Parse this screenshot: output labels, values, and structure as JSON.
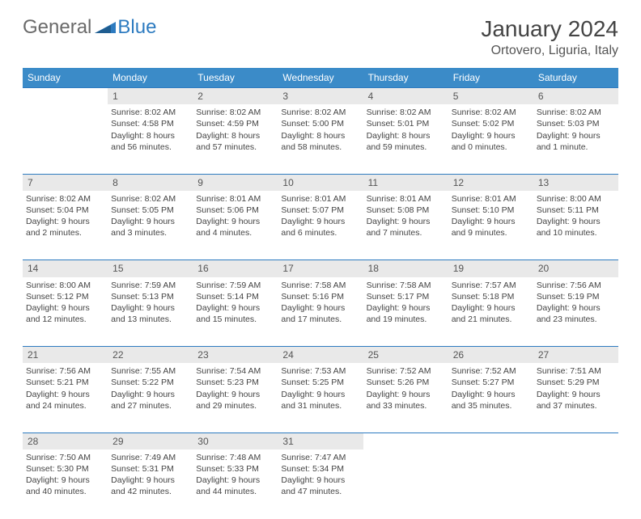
{
  "logo": {
    "text1": "General",
    "text2": "Blue"
  },
  "title": "January 2024",
  "location": "Ortovero, Liguria, Italy",
  "weekdays": [
    "Sunday",
    "Monday",
    "Tuesday",
    "Wednesday",
    "Thursday",
    "Friday",
    "Saturday"
  ],
  "colors": {
    "header_bg": "#3b8bc8",
    "header_fg": "#ffffff",
    "daynum_bg": "#e9e9e9",
    "border": "#2d7bc0",
    "logo_gray": "#6a6a6a",
    "logo_blue": "#2d7bc0"
  },
  "weeks": [
    [
      {
        "empty": true
      },
      {
        "d": "1",
        "l1": "Sunrise: 8:02 AM",
        "l2": "Sunset: 4:58 PM",
        "l3": "Daylight: 8 hours",
        "l4": "and 56 minutes."
      },
      {
        "d": "2",
        "l1": "Sunrise: 8:02 AM",
        "l2": "Sunset: 4:59 PM",
        "l3": "Daylight: 8 hours",
        "l4": "and 57 minutes."
      },
      {
        "d": "3",
        "l1": "Sunrise: 8:02 AM",
        "l2": "Sunset: 5:00 PM",
        "l3": "Daylight: 8 hours",
        "l4": "and 58 minutes."
      },
      {
        "d": "4",
        "l1": "Sunrise: 8:02 AM",
        "l2": "Sunset: 5:01 PM",
        "l3": "Daylight: 8 hours",
        "l4": "and 59 minutes."
      },
      {
        "d": "5",
        "l1": "Sunrise: 8:02 AM",
        "l2": "Sunset: 5:02 PM",
        "l3": "Daylight: 9 hours",
        "l4": "and 0 minutes."
      },
      {
        "d": "6",
        "l1": "Sunrise: 8:02 AM",
        "l2": "Sunset: 5:03 PM",
        "l3": "Daylight: 9 hours",
        "l4": "and 1 minute."
      }
    ],
    [
      {
        "d": "7",
        "l1": "Sunrise: 8:02 AM",
        "l2": "Sunset: 5:04 PM",
        "l3": "Daylight: 9 hours",
        "l4": "and 2 minutes."
      },
      {
        "d": "8",
        "l1": "Sunrise: 8:02 AM",
        "l2": "Sunset: 5:05 PM",
        "l3": "Daylight: 9 hours",
        "l4": "and 3 minutes."
      },
      {
        "d": "9",
        "l1": "Sunrise: 8:01 AM",
        "l2": "Sunset: 5:06 PM",
        "l3": "Daylight: 9 hours",
        "l4": "and 4 minutes."
      },
      {
        "d": "10",
        "l1": "Sunrise: 8:01 AM",
        "l2": "Sunset: 5:07 PM",
        "l3": "Daylight: 9 hours",
        "l4": "and 6 minutes."
      },
      {
        "d": "11",
        "l1": "Sunrise: 8:01 AM",
        "l2": "Sunset: 5:08 PM",
        "l3": "Daylight: 9 hours",
        "l4": "and 7 minutes."
      },
      {
        "d": "12",
        "l1": "Sunrise: 8:01 AM",
        "l2": "Sunset: 5:10 PM",
        "l3": "Daylight: 9 hours",
        "l4": "and 9 minutes."
      },
      {
        "d": "13",
        "l1": "Sunrise: 8:00 AM",
        "l2": "Sunset: 5:11 PM",
        "l3": "Daylight: 9 hours",
        "l4": "and 10 minutes."
      }
    ],
    [
      {
        "d": "14",
        "l1": "Sunrise: 8:00 AM",
        "l2": "Sunset: 5:12 PM",
        "l3": "Daylight: 9 hours",
        "l4": "and 12 minutes."
      },
      {
        "d": "15",
        "l1": "Sunrise: 7:59 AM",
        "l2": "Sunset: 5:13 PM",
        "l3": "Daylight: 9 hours",
        "l4": "and 13 minutes."
      },
      {
        "d": "16",
        "l1": "Sunrise: 7:59 AM",
        "l2": "Sunset: 5:14 PM",
        "l3": "Daylight: 9 hours",
        "l4": "and 15 minutes."
      },
      {
        "d": "17",
        "l1": "Sunrise: 7:58 AM",
        "l2": "Sunset: 5:16 PM",
        "l3": "Daylight: 9 hours",
        "l4": "and 17 minutes."
      },
      {
        "d": "18",
        "l1": "Sunrise: 7:58 AM",
        "l2": "Sunset: 5:17 PM",
        "l3": "Daylight: 9 hours",
        "l4": "and 19 minutes."
      },
      {
        "d": "19",
        "l1": "Sunrise: 7:57 AM",
        "l2": "Sunset: 5:18 PM",
        "l3": "Daylight: 9 hours",
        "l4": "and 21 minutes."
      },
      {
        "d": "20",
        "l1": "Sunrise: 7:56 AM",
        "l2": "Sunset: 5:19 PM",
        "l3": "Daylight: 9 hours",
        "l4": "and 23 minutes."
      }
    ],
    [
      {
        "d": "21",
        "l1": "Sunrise: 7:56 AM",
        "l2": "Sunset: 5:21 PM",
        "l3": "Daylight: 9 hours",
        "l4": "and 24 minutes."
      },
      {
        "d": "22",
        "l1": "Sunrise: 7:55 AM",
        "l2": "Sunset: 5:22 PM",
        "l3": "Daylight: 9 hours",
        "l4": "and 27 minutes."
      },
      {
        "d": "23",
        "l1": "Sunrise: 7:54 AM",
        "l2": "Sunset: 5:23 PM",
        "l3": "Daylight: 9 hours",
        "l4": "and 29 minutes."
      },
      {
        "d": "24",
        "l1": "Sunrise: 7:53 AM",
        "l2": "Sunset: 5:25 PM",
        "l3": "Daylight: 9 hours",
        "l4": "and 31 minutes."
      },
      {
        "d": "25",
        "l1": "Sunrise: 7:52 AM",
        "l2": "Sunset: 5:26 PM",
        "l3": "Daylight: 9 hours",
        "l4": "and 33 minutes."
      },
      {
        "d": "26",
        "l1": "Sunrise: 7:52 AM",
        "l2": "Sunset: 5:27 PM",
        "l3": "Daylight: 9 hours",
        "l4": "and 35 minutes."
      },
      {
        "d": "27",
        "l1": "Sunrise: 7:51 AM",
        "l2": "Sunset: 5:29 PM",
        "l3": "Daylight: 9 hours",
        "l4": "and 37 minutes."
      }
    ],
    [
      {
        "d": "28",
        "l1": "Sunrise: 7:50 AM",
        "l2": "Sunset: 5:30 PM",
        "l3": "Daylight: 9 hours",
        "l4": "and 40 minutes."
      },
      {
        "d": "29",
        "l1": "Sunrise: 7:49 AM",
        "l2": "Sunset: 5:31 PM",
        "l3": "Daylight: 9 hours",
        "l4": "and 42 minutes."
      },
      {
        "d": "30",
        "l1": "Sunrise: 7:48 AM",
        "l2": "Sunset: 5:33 PM",
        "l3": "Daylight: 9 hours",
        "l4": "and 44 minutes."
      },
      {
        "d": "31",
        "l1": "Sunrise: 7:47 AM",
        "l2": "Sunset: 5:34 PM",
        "l3": "Daylight: 9 hours",
        "l4": "and 47 minutes."
      },
      {
        "empty": true
      },
      {
        "empty": true
      },
      {
        "empty": true
      }
    ]
  ]
}
